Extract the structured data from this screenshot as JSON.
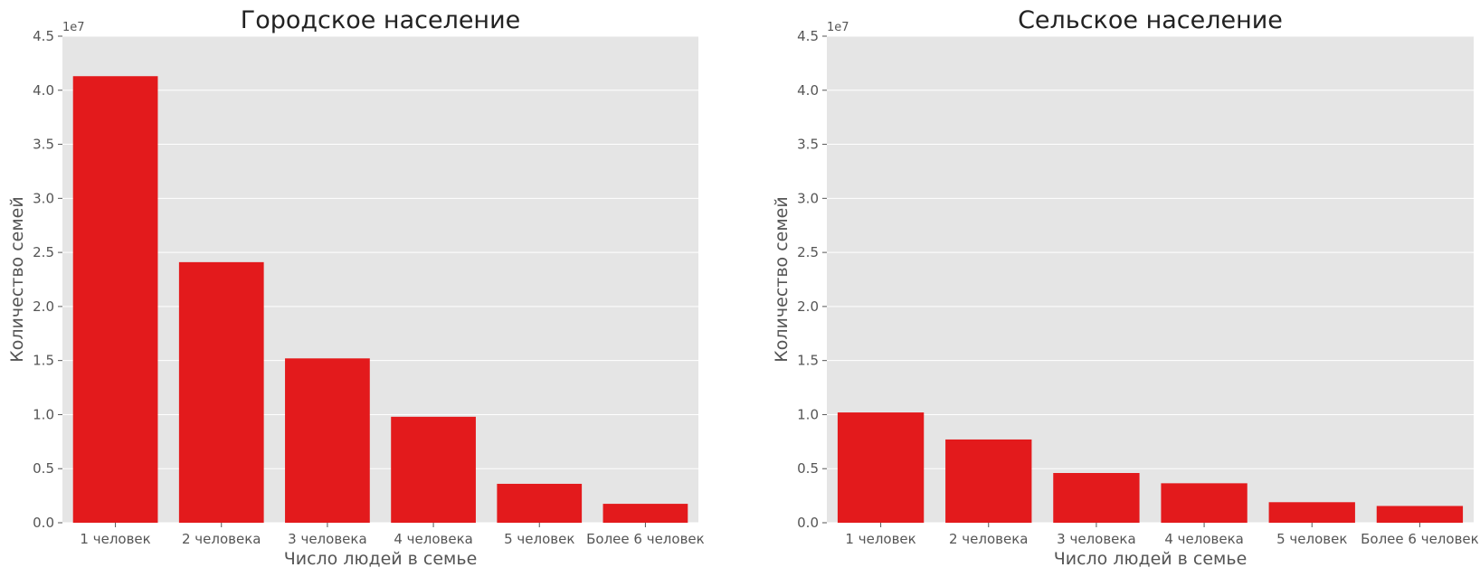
{
  "chart_data": [
    {
      "type": "bar",
      "title": "Городское население",
      "xlabel": "Число людей в семье",
      "ylabel": "Количество семей",
      "offset_label": "1e7",
      "categories": [
        "1 человек",
        "2 человека",
        "3 человека",
        "4 человека",
        "5 человек",
        "Более 6 человек"
      ],
      "values": [
        41300000,
        24100000,
        15200000,
        9800000,
        3600000,
        1750000
      ],
      "ylim": [
        0,
        45000000
      ],
      "yticks": [
        0,
        5000000,
        10000000,
        15000000,
        20000000,
        25000000,
        30000000,
        35000000,
        40000000,
        45000000
      ],
      "ytick_labels": [
        "0.0",
        "0.5",
        "1.0",
        "1.5",
        "2.0",
        "2.5",
        "3.0",
        "3.5",
        "4.0",
        "4.5"
      ],
      "bar_color": "#e31a1c",
      "background": "#e5e5e5",
      "grid": true
    },
    {
      "type": "bar",
      "title": "Сельское население",
      "xlabel": "Число людей в семье",
      "ylabel": "Количество семей",
      "offset_label": "1e7",
      "categories": [
        "1 человек",
        "2 человека",
        "3 человека",
        "4 человека",
        "5 человек",
        "Более 6 человек"
      ],
      "values": [
        10200000,
        7700000,
        4600000,
        3650000,
        1900000,
        1550000
      ],
      "ylim": [
        0,
        45000000
      ],
      "yticks": [
        0,
        5000000,
        10000000,
        15000000,
        20000000,
        25000000,
        30000000,
        35000000,
        40000000,
        45000000
      ],
      "ytick_labels": [
        "0.0",
        "0.5",
        "1.0",
        "1.5",
        "2.0",
        "2.5",
        "3.0",
        "3.5",
        "4.0",
        "4.5"
      ],
      "bar_color": "#e31a1c",
      "background": "#e5e5e5",
      "grid": true
    }
  ]
}
